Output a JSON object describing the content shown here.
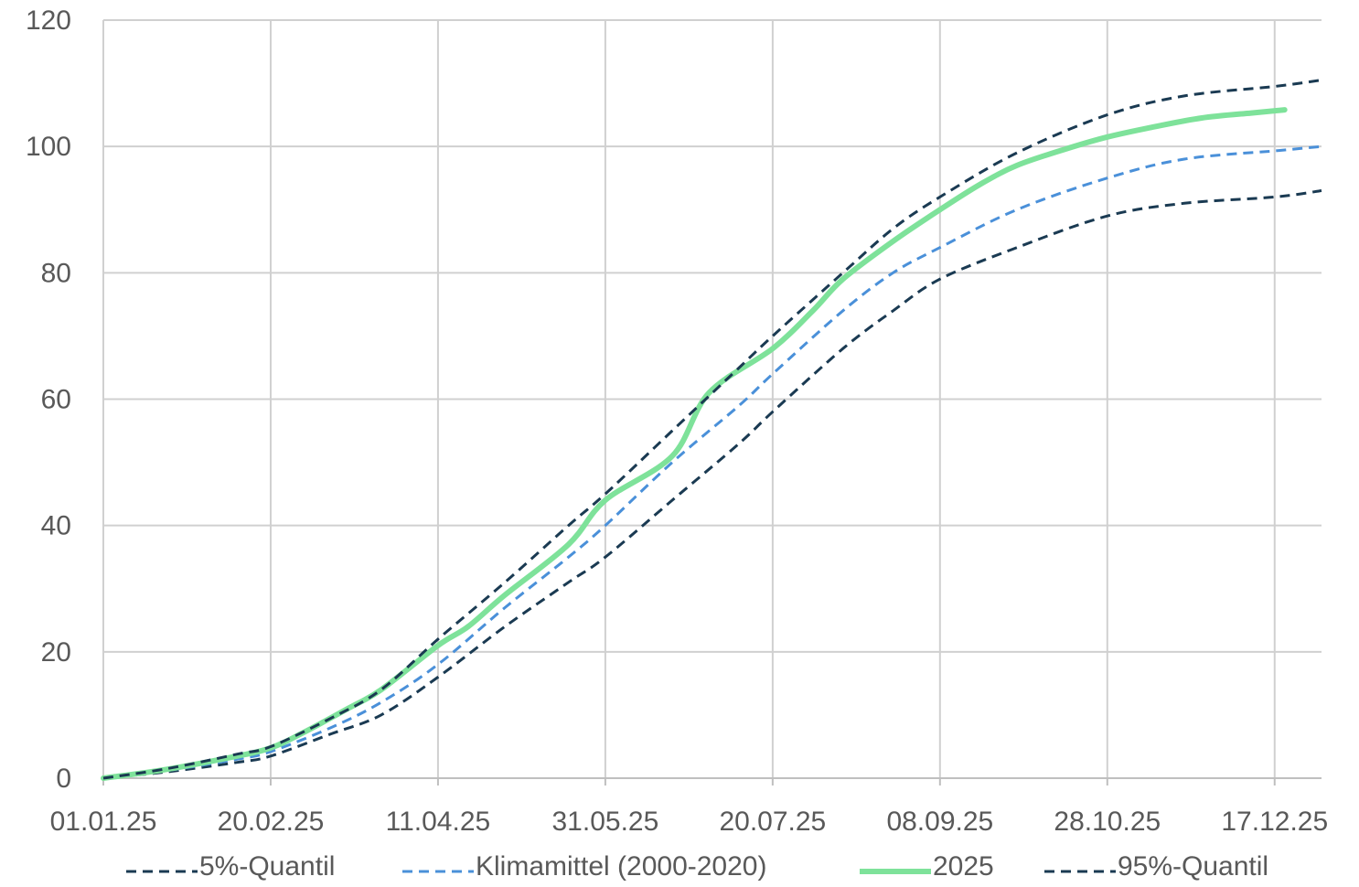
{
  "chart_data": {
    "type": "line",
    "title": "",
    "xlabel": "",
    "ylabel": "",
    "ylim": [
      0,
      120
    ],
    "yticks": [
      "0",
      "20",
      "40",
      "60",
      "80",
      "100",
      "120"
    ],
    "xlim": [
      "01.01.25",
      "31.12.25"
    ],
    "xticks": [
      "01.01.25",
      "20.02.25",
      "11.04.25",
      "31.05.25",
      "20.07.25",
      "08.09.25",
      "28.10.25",
      "17.12.25"
    ],
    "grid": true,
    "legend_position": "bottom",
    "series": [
      {
        "name": "5%-Quantil",
        "color": "#1a3a52",
        "style": "dashed",
        "x": [
          "01.01.25",
          "20.01.25",
          "10.02.25",
          "20.02.25",
          "10.03.25",
          "25.03.25",
          "11.04.25",
          "01.05.25",
          "20.05.25",
          "31.05.25",
          "20.06.25",
          "10.07.25",
          "20.07.25",
          "10.08.25",
          "25.08.25",
          "08.09.25",
          "01.10.25",
          "28.10.25",
          "20.11.25",
          "17.12.25",
          "31.12.25"
        ],
        "values": [
          0,
          1,
          2.5,
          3.5,
          7,
          10,
          16,
          24,
          31,
          35,
          44,
          53,
          58,
          68,
          74,
          79,
          84,
          89,
          91,
          92,
          93
        ]
      },
      {
        "name": "Klimamittel (2000-2020)",
        "color": "#4a90d9",
        "style": "dashed",
        "x": [
          "01.01.25",
          "20.01.25",
          "10.02.25",
          "20.02.25",
          "10.03.25",
          "25.03.25",
          "11.04.25",
          "01.05.25",
          "20.05.25",
          "31.05.25",
          "20.06.25",
          "10.07.25",
          "20.07.25",
          "10.08.25",
          "25.08.25",
          "08.09.25",
          "01.10.25",
          "28.10.25",
          "20.11.25",
          "17.12.25",
          "31.12.25"
        ],
        "values": [
          0,
          1.2,
          3,
          4.2,
          8,
          12,
          18,
          27,
          35,
          40,
          50,
          59,
          64,
          74,
          80,
          84,
          90,
          95,
          98,
          99.3,
          100
        ]
      },
      {
        "name": "2025",
        "color": "#7ee29a",
        "style": "solid",
        "x": [
          "01.01.25",
          "20.01.25",
          "10.02.25",
          "20.02.25",
          "01.03.25",
          "15.03.25",
          "25.03.25",
          "11.04.25",
          "20.04.25",
          "01.05.25",
          "20.05.25",
          "31.05.25",
          "20.06.25",
          "01.07.25",
          "20.07.25",
          "01.08.25",
          "10.08.25",
          "25.08.25",
          "08.09.25",
          "20.09.25",
          "01.10.25",
          "15.10.25",
          "28.10.25",
          "10.11.25",
          "25.11.25",
          "10.12.25",
          "20.12.25"
        ],
        "values": [
          0,
          1.4,
          3.5,
          4.8,
          7,
          11,
          14,
          21,
          24,
          29,
          37,
          44,
          51,
          61,
          68,
          74,
          79,
          85,
          90,
          94,
          97,
          99.5,
          101.5,
          103,
          104.5,
          105.3,
          105.8
        ]
      },
      {
        "name": "95%-Quantil",
        "color": "#1a3a52",
        "style": "dashed",
        "x": [
          "01.01.25",
          "20.01.25",
          "10.02.25",
          "20.02.25",
          "10.03.25",
          "25.03.25",
          "11.04.25",
          "01.05.25",
          "20.05.25",
          "31.05.25",
          "20.06.25",
          "10.07.25",
          "20.07.25",
          "10.08.25",
          "25.08.25",
          "08.09.25",
          "01.10.25",
          "28.10.25",
          "20.11.25",
          "17.12.25",
          "31.12.25"
        ],
        "values": [
          0,
          1.5,
          3.8,
          5,
          9.5,
          14,
          22,
          31,
          40,
          45,
          55,
          65,
          70,
          80,
          87,
          92,
          99,
          105,
          108,
          109.5,
          110.5
        ]
      }
    ]
  }
}
